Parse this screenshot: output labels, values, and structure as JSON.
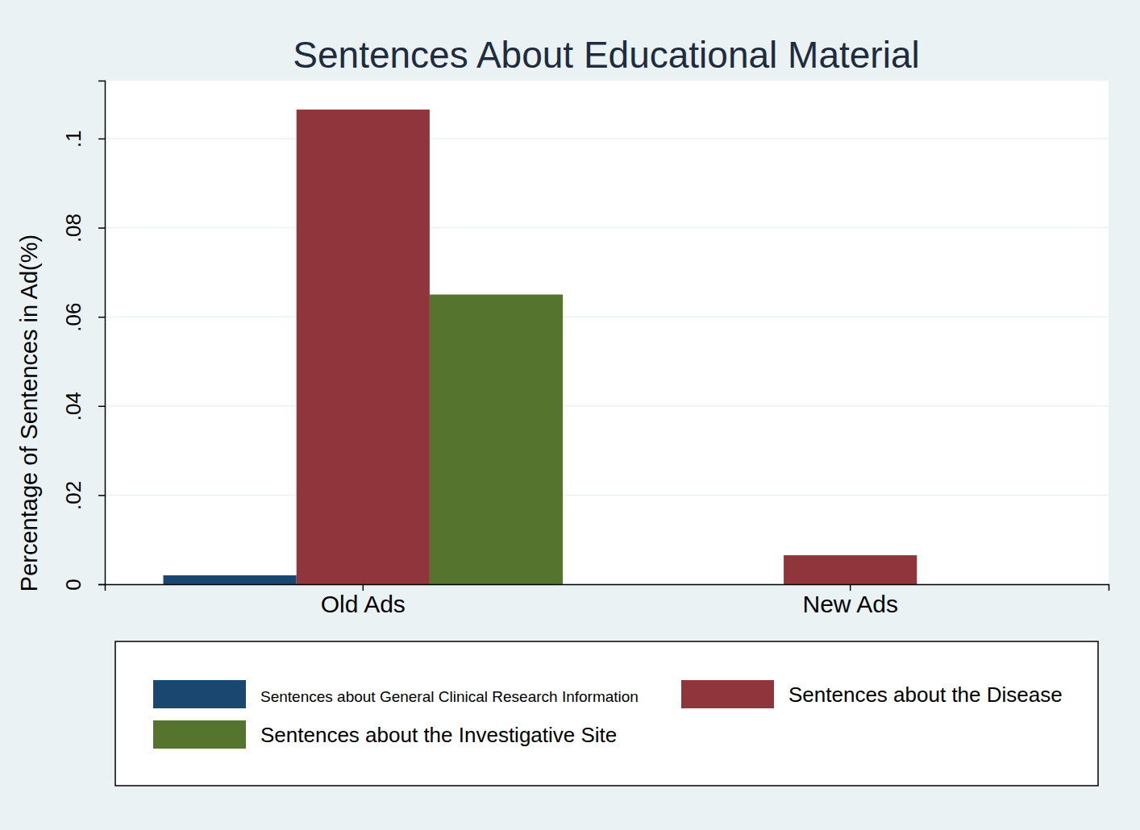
{
  "chart_data": {
    "type": "bar",
    "title": "Sentences About Educational Material",
    "y_label": "Percentage of Sentences in Ad(%)",
    "categories": [
      "Old Ads",
      "New Ads"
    ],
    "series": [
      {
        "name": "Sentences about General Clinical Research Information",
        "color": "#1a476f",
        "values": [
          0.002,
          0
        ]
      },
      {
        "name": "Sentences about the Disease",
        "color": "#90353b",
        "values": [
          0.1065,
          0.0065
        ]
      },
      {
        "name": "Sentences about the Investigative Site",
        "color": "#55752f",
        "values": [
          0.065,
          0
        ]
      }
    ],
    "ylim": [
      0,
      0.113
    ],
    "yticks": [
      0,
      {
        "value": 0.02,
        "label": ".02"
      },
      {
        "value": 0.04,
        "label": ".04"
      },
      {
        "value": 0.06,
        "label": ".06"
      },
      {
        "value": 0.08,
        "label": ".08"
      },
      {
        "value": 0.1,
        "label": ".1"
      }
    ],
    "grid": true,
    "legend": "bottom"
  }
}
